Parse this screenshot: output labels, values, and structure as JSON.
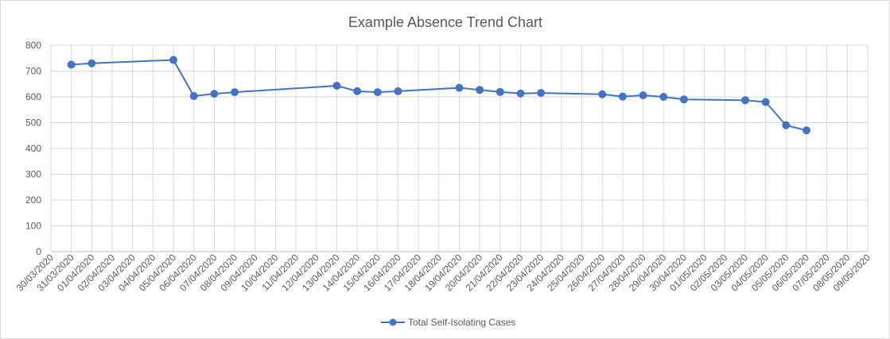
{
  "chart_data": {
    "type": "line",
    "title": "Example Absence Trend Chart",
    "xlabel": "",
    "ylabel": "",
    "ylim": [
      0,
      800
    ],
    "y_ticks": [
      "0",
      "100",
      "200",
      "300",
      "400",
      "500",
      "600",
      "700",
      "800"
    ],
    "categories": [
      "30/03/2020",
      "31/03/2020",
      "01/04/2020",
      "02/04/2020",
      "03/04/2020",
      "04/04/2020",
      "05/04/2020",
      "06/04/2020",
      "07/04/2020",
      "08/04/2020",
      "09/04/2020",
      "10/04/2020",
      "11/04/2020",
      "12/04/2020",
      "13/04/2020",
      "14/04/2020",
      "15/04/2020",
      "16/04/2020",
      "17/04/2020",
      "18/04/2020",
      "19/04/2020",
      "20/04/2020",
      "21/04/2020",
      "22/04/2020",
      "23/04/2020",
      "24/04/2020",
      "25/04/2020",
      "26/04/2020",
      "27/04/2020",
      "28/04/2020",
      "29/04/2020",
      "30/04/2020",
      "01/05/2020",
      "02/05/2020",
      "03/05/2020",
      "04/05/2020",
      "05/05/2020",
      "06/05/2020",
      "07/05/2020",
      "08/05/2020",
      "09/05/2020"
    ],
    "grid": true,
    "legend_position": "bottom",
    "series": [
      {
        "name": "Total Self-Isolating Cases",
        "color": "#4472c4",
        "points": [
          {
            "x": "31/03/2020",
            "y": 725
          },
          {
            "x": "01/04/2020",
            "y": 730
          },
          {
            "x": "05/04/2020",
            "y": 743
          },
          {
            "x": "06/04/2020",
            "y": 603
          },
          {
            "x": "07/04/2020",
            "y": 612
          },
          {
            "x": "08/04/2020",
            "y": 618
          },
          {
            "x": "13/04/2020",
            "y": 643
          },
          {
            "x": "14/04/2020",
            "y": 622
          },
          {
            "x": "15/04/2020",
            "y": 618
          },
          {
            "x": "16/04/2020",
            "y": 622
          },
          {
            "x": "19/04/2020",
            "y": 635
          },
          {
            "x": "20/04/2020",
            "y": 627
          },
          {
            "x": "21/04/2020",
            "y": 619
          },
          {
            "x": "22/04/2020",
            "y": 613
          },
          {
            "x": "23/04/2020",
            "y": 615
          },
          {
            "x": "26/04/2020",
            "y": 610
          },
          {
            "x": "27/04/2020",
            "y": 601
          },
          {
            "x": "28/04/2020",
            "y": 606
          },
          {
            "x": "29/04/2020",
            "y": 600
          },
          {
            "x": "30/04/2020",
            "y": 590
          },
          {
            "x": "03/05/2020",
            "y": 587
          },
          {
            "x": "04/05/2020",
            "y": 580
          },
          {
            "x": "05/05/2020",
            "y": 490
          },
          {
            "x": "06/05/2020",
            "y": 470
          }
        ]
      }
    ]
  }
}
